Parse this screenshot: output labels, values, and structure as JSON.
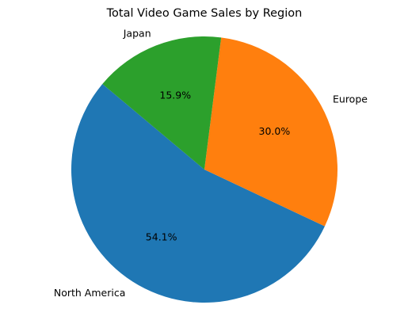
{
  "chart_data": {
    "type": "pie",
    "title": "Total Video Game Sales by Region",
    "categories": [
      "North America",
      "Europe",
      "Japan"
    ],
    "values": [
      54.1,
      30.0,
      15.9
    ],
    "value_labels": [
      "54.1%",
      "30.0%",
      "15.9%"
    ],
    "colors": [
      "#1f77b4",
      "#ff7f0e",
      "#2ca02c"
    ],
    "start_angle_deg": 140,
    "direction": "counterclockwise",
    "legend": "none"
  }
}
